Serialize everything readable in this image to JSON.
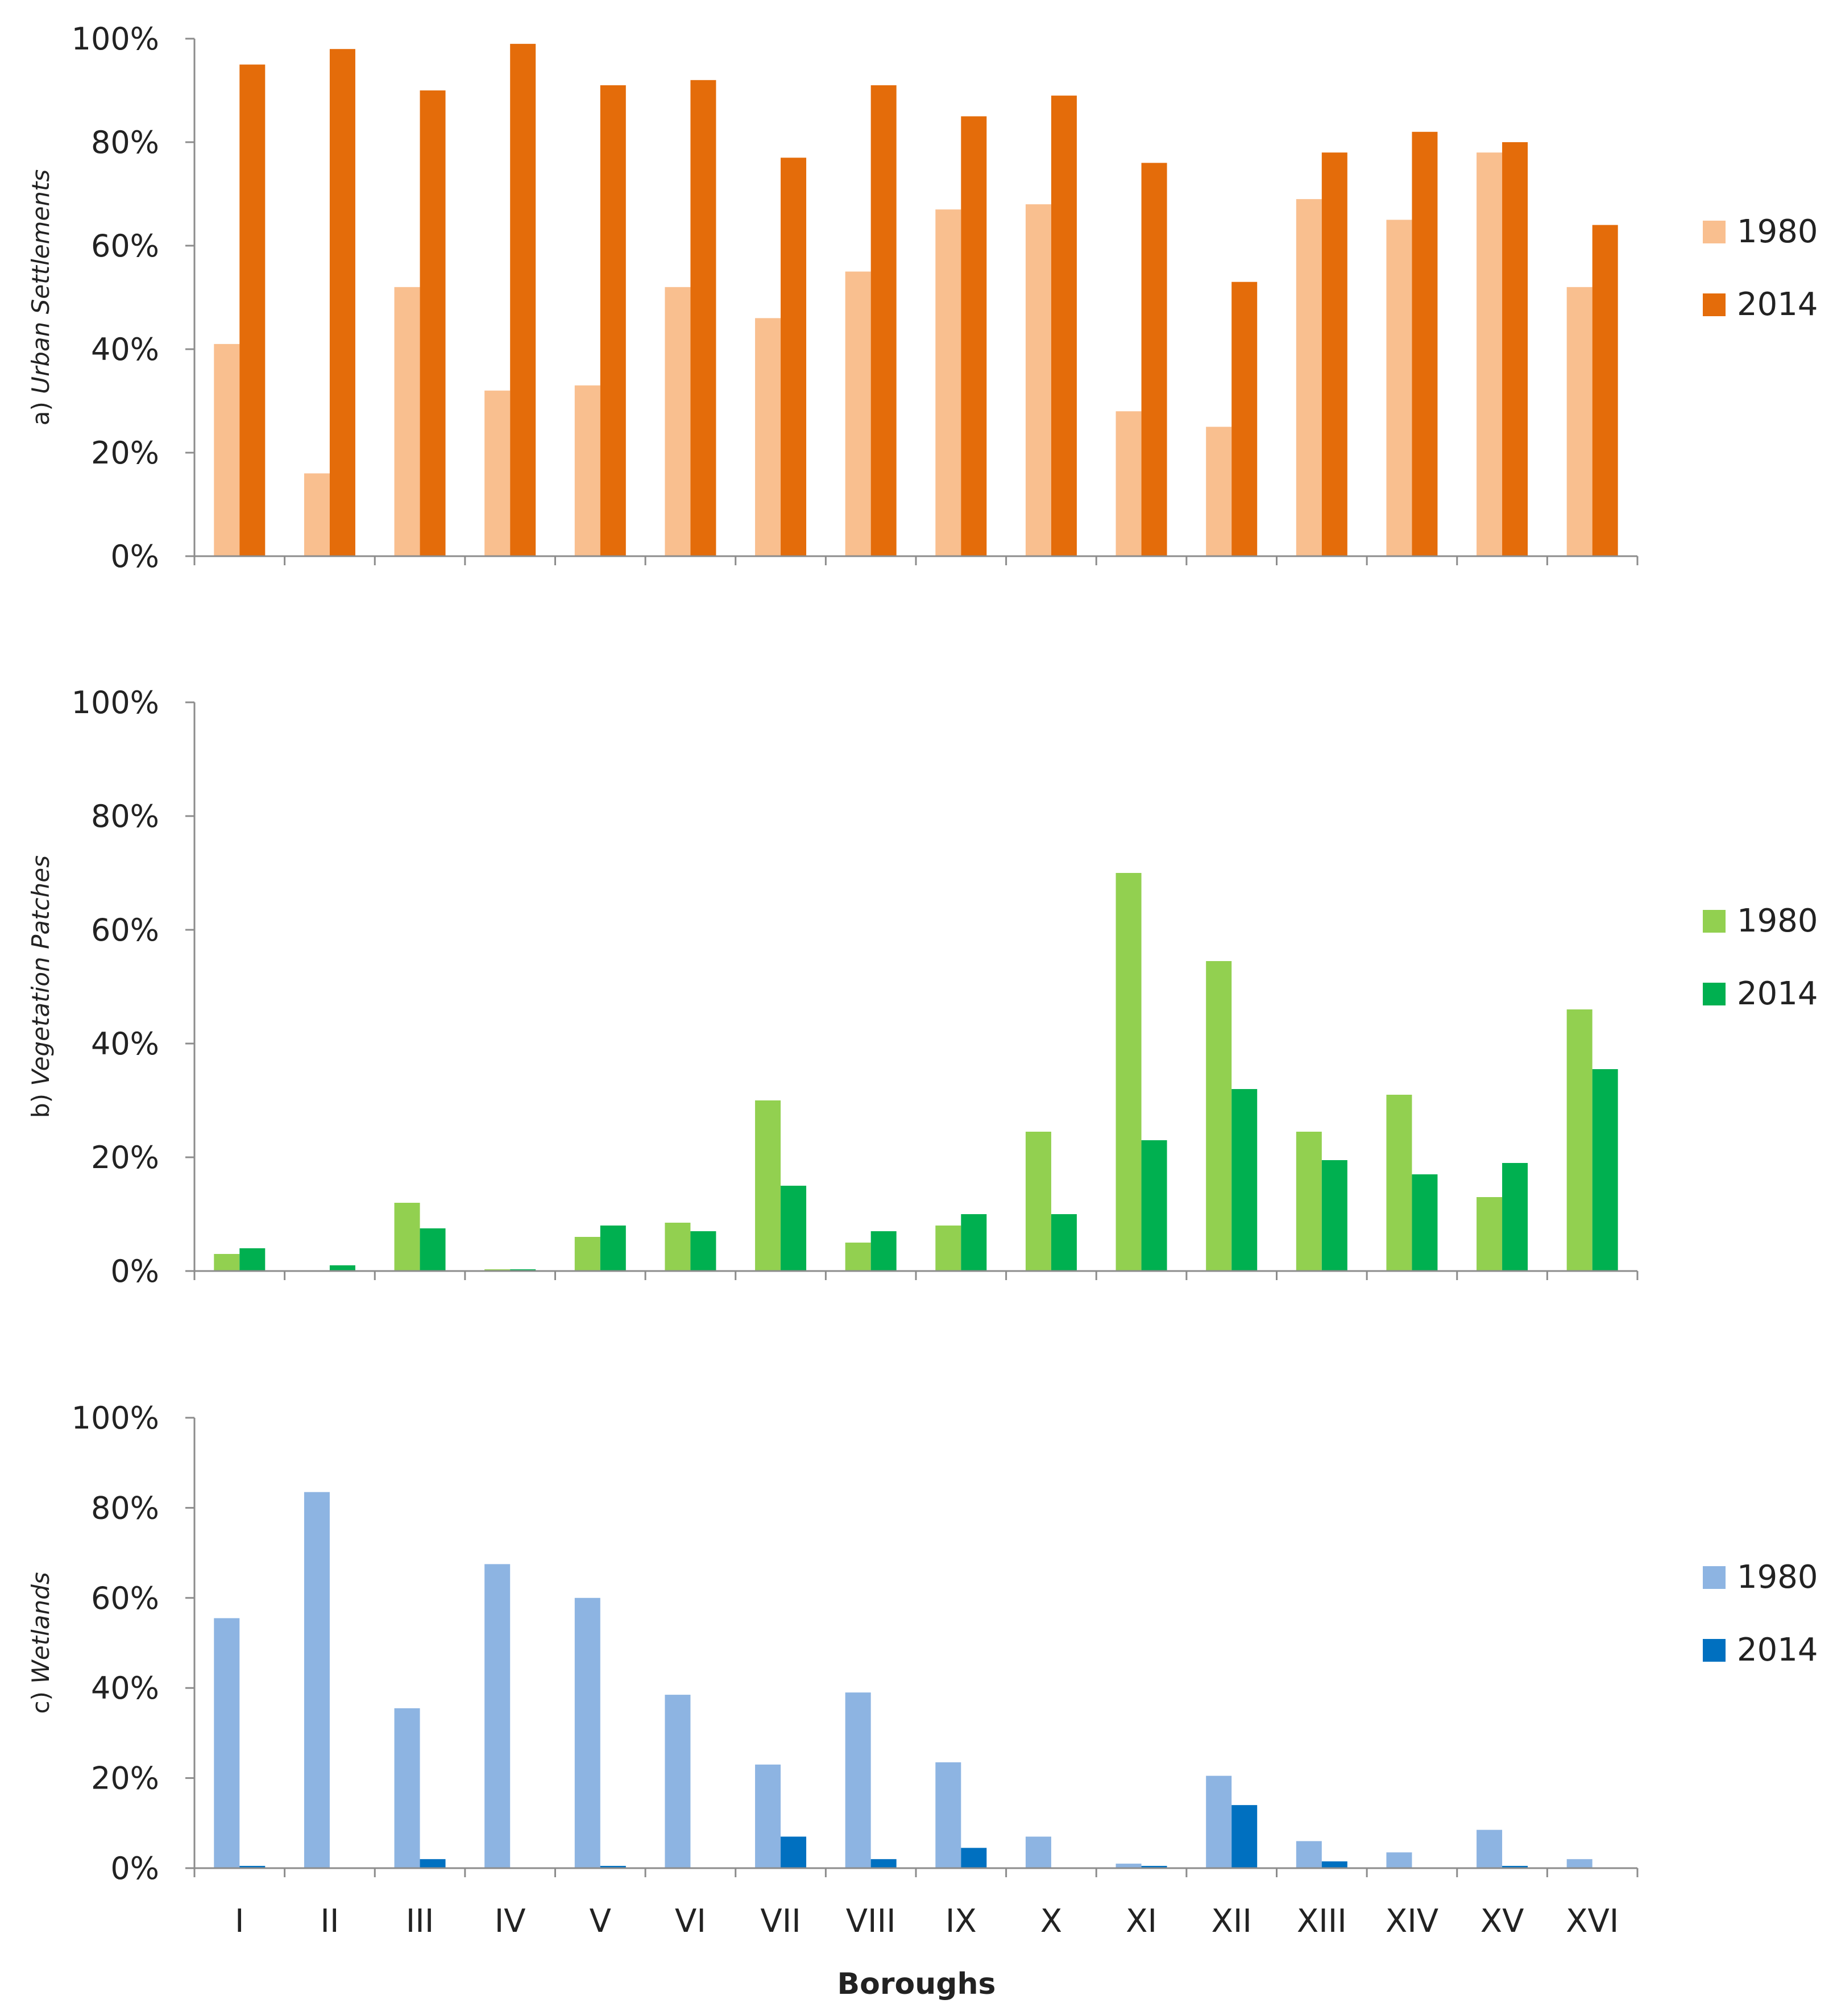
{
  "chart_data": [
    {
      "type": "bar",
      "panel": "a",
      "ylabel_prefix": "a)",
      "ylabel": "Urban Settlements",
      "ylim": [
        0,
        100
      ],
      "yticks": [
        "0%",
        "20%",
        "40%",
        "60%",
        "80%",
        "100%"
      ],
      "categories": [
        "I",
        "II",
        "III",
        "IV",
        "V",
        "VI",
        "VII",
        "VIII",
        "IX",
        "X",
        "XI",
        "XII",
        "XIII",
        "XIV",
        "XV",
        "XVI"
      ],
      "series": [
        {
          "name": "1980",
          "color": "#f9bf8f",
          "values": [
            41,
            16,
            52,
            32,
            33,
            52,
            46,
            55,
            67,
            68,
            28,
            25,
            69,
            65,
            78,
            52
          ]
        },
        {
          "name": "2014",
          "color": "#e46c0a",
          "values": [
            95,
            98,
            90,
            99,
            91,
            92,
            77,
            91,
            85,
            89,
            76,
            53,
            78,
            82,
            80,
            64
          ]
        }
      ],
      "legend": "right"
    },
    {
      "type": "bar",
      "panel": "b",
      "ylabel_prefix": "b)",
      "ylabel": "Vegetation Patches",
      "ylim": [
        0,
        100
      ],
      "yticks": [
        "0%",
        "20%",
        "40%",
        "60%",
        "80%",
        "100%"
      ],
      "categories": [
        "I",
        "II",
        "III",
        "IV",
        "V",
        "VI",
        "VII",
        "VIII",
        "IX",
        "X",
        "XI",
        "XII",
        "XIII",
        "XIV",
        "XV",
        "XVI"
      ],
      "series": [
        {
          "name": "1980",
          "color": "#92d050",
          "values": [
            3,
            0,
            12,
            0.3,
            6,
            8.5,
            30,
            5,
            8,
            24.5,
            70,
            54.5,
            24.5,
            31,
            13,
            46
          ]
        },
        {
          "name": "2014",
          "color": "#00b050",
          "values": [
            4,
            1,
            7.5,
            0.3,
            8,
            7,
            15,
            7,
            10,
            10,
            23,
            32,
            19.5,
            17,
            19,
            35.5
          ]
        }
      ],
      "legend": "right"
    },
    {
      "type": "bar",
      "panel": "c",
      "ylabel_prefix": "c)",
      "ylabel": "Wetlands",
      "ylim": [
        0,
        100
      ],
      "yticks": [
        "0%",
        "20%",
        "40%",
        "60%",
        "80%",
        "100%"
      ],
      "categories": [
        "I",
        "II",
        "III",
        "IV",
        "V",
        "VI",
        "VII",
        "VIII",
        "IX",
        "X",
        "XI",
        "XII",
        "XIII",
        "XIV",
        "XV",
        "XVI"
      ],
      "series": [
        {
          "name": "1980",
          "color": "#8db4e2",
          "values": [
            55.5,
            83.5,
            35.5,
            67.5,
            60,
            38.5,
            23,
            39,
            23.5,
            7,
            1,
            20.5,
            6,
            3.5,
            8.5,
            2
          ]
        },
        {
          "name": "2014",
          "color": "#0070c0",
          "values": [
            0.5,
            0,
            2,
            0,
            0.5,
            0,
            7,
            2,
            4.5,
            0,
            0.5,
            14,
            1.5,
            0,
            0.5,
            0
          ]
        }
      ],
      "legend": "right"
    }
  ],
  "xlabel": "Boroughs"
}
